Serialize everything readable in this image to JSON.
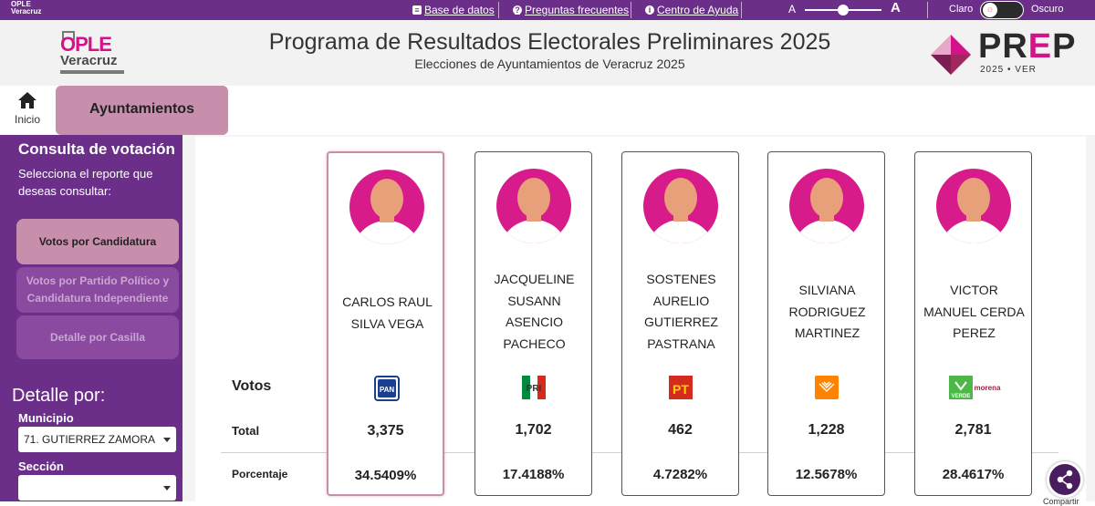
{
  "topbar": {
    "logo_text": "OPLE Veracruz",
    "links": [
      {
        "label": "Base de datos",
        "icon": "database-icon"
      },
      {
        "label": "Preguntas frecuentes",
        "icon": "question-icon"
      },
      {
        "label": "Centro de Ayuda",
        "icon": "info-icon"
      }
    ],
    "font_small": "A",
    "font_large": "A",
    "theme_light": "Claro",
    "theme_dark": "Oscuro"
  },
  "header": {
    "ople_logo": "OPLE",
    "ople_logo_sub": "Veracruz",
    "title": "Programa de Resultados Electorales Preliminares 2025",
    "subtitle": "Elecciones de Ayuntamientos de Veracruz 2025",
    "prep_logo": "PREP",
    "prep_year": "2025 • VER"
  },
  "nav": {
    "home_label": "Inicio",
    "active_tab": "Ayuntamientos"
  },
  "sidebar": {
    "title": "Consulta de votación",
    "description": "Selecciona el reporte que deseas consultar:",
    "buttons": [
      {
        "label": "Votos por Candidatura",
        "active": true
      },
      {
        "label": "Votos por Partido Político y Candidatura Independiente",
        "active": false
      },
      {
        "label": "Detalle por Casilla",
        "active": false
      }
    ],
    "detail_heading": "Detalle por:",
    "municipio_label": "Municipio",
    "municipio_value": "71. GUTIERREZ ZAMORA",
    "seccion_label": "Sección",
    "seccion_value": ""
  },
  "table": {
    "row_votos": "Votos",
    "row_total": "Total",
    "row_porcentaje": "Porcentaje",
    "candidates": [
      {
        "name_lines": [
          "CARLOS RAUL",
          "SILVA VEGA"
        ],
        "party": "PAN",
        "party_icon": "pan-logo-icon",
        "total": "3,375",
        "pct": "34.5409%",
        "selected": true
      },
      {
        "name_lines": [
          "JACQUELINE",
          "SUSANN",
          "ASENCIO",
          "PACHECO"
        ],
        "party": "PRI",
        "party_icon": "pri-logo-icon",
        "total": "1,702",
        "pct": "17.4188%",
        "selected": false
      },
      {
        "name_lines": [
          "SOSTENES",
          "AURELIO",
          "GUTIERREZ",
          "PASTRANA"
        ],
        "party": "PT",
        "party_icon": "pt-logo-icon",
        "total": "462",
        "pct": "4.7282%",
        "selected": false
      },
      {
        "name_lines": [
          "SILVIANA",
          "RODRIGUEZ",
          "MARTINEZ"
        ],
        "party": "MC",
        "party_icon": "mc-logo-icon",
        "total": "1,228",
        "pct": "12.5678%",
        "selected": false
      },
      {
        "name_lines": [
          "VICTOR",
          "MANUEL CERDA",
          "PEREZ"
        ],
        "party": "VERDE / morena",
        "party_icon": "verde-morena-logo-icon",
        "total": "2,781",
        "pct": "28.4617%",
        "selected": false
      }
    ]
  },
  "share": {
    "label": "Compartir"
  },
  "colors": {
    "primary": "#6b2f8a",
    "accent": "#c88fac",
    "magenta": "#d4138a"
  }
}
